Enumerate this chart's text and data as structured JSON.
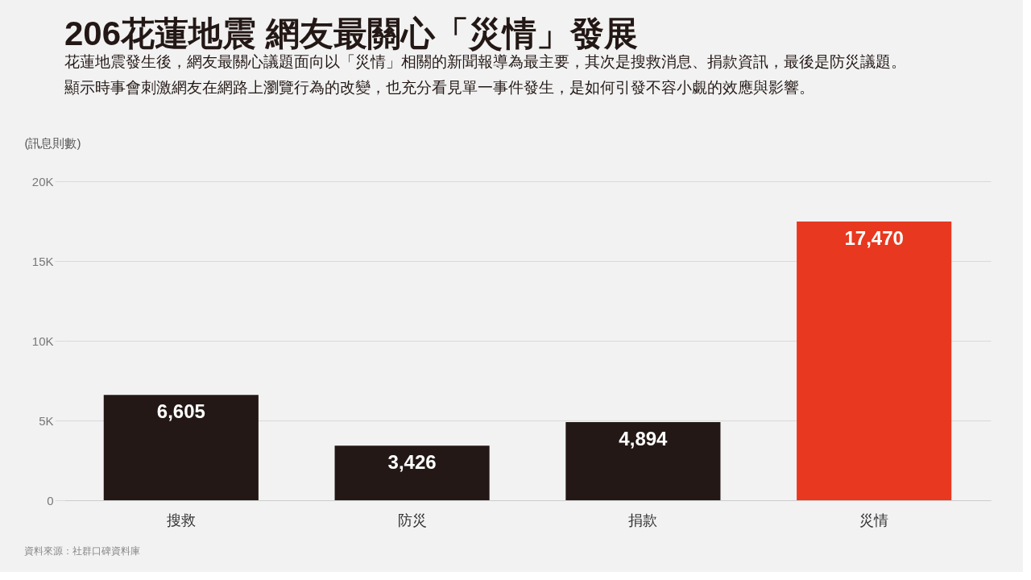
{
  "chart_data": {
    "type": "bar",
    "title": "206花蓮地震 網友最關心「災情」發展",
    "subtitle": "花蓮地震發生後，網友最關心議題面向以「災情」相關的新聞報導為最主要，其次是搜救消息、捐款資訊，最後是防災議題。顯示時事會刺激網友在網路上瀏覽行為的改變，也充分看見單一事件發生，是如何引發不容小覷的效應與影響。",
    "ylabel": "(訊息則數)",
    "categories": [
      "搜救",
      "防災",
      "捐款",
      "災情"
    ],
    "values": [
      6605,
      3426,
      4894,
      17470
    ],
    "colors": [
      "#231815",
      "#231815",
      "#231815",
      "#e8381f"
    ],
    "value_labels": [
      "6,605",
      "3,426",
      "4,894",
      "17,470"
    ],
    "ylim": [
      0,
      20000
    ],
    "yticks": [
      0,
      {
        "value": 5000,
        "label": "5K"
      },
      {
        "value": 10000,
        "label": "10K"
      },
      {
        "value": 15000,
        "label": "15K"
      },
      {
        "value": 20000,
        "label": "20K"
      }
    ],
    "grid": "y",
    "annotations": [
      "資料來源：社群口碑資料庫"
    ]
  }
}
